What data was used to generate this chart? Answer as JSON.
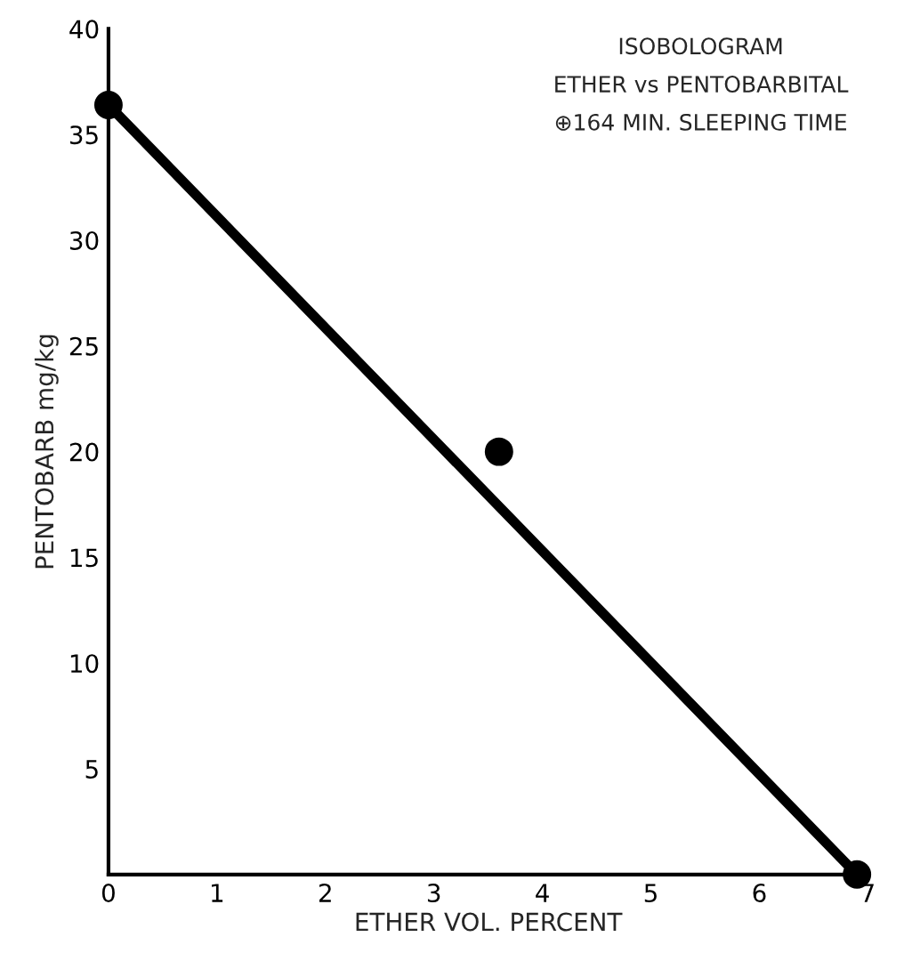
{
  "chart_data": {
    "type": "line",
    "xlabel": "ETHER VOL. PERCENT",
    "ylabel": "PENTOBARB mg/kg",
    "annotations": [
      "ISOBOLOGRAM",
      "ETHER vs PENTOBARBITAL",
      "⊕164 MIN. SLEEPING TIME"
    ],
    "series": [
      {
        "color": "#000000",
        "x": [
          0,
          6.9
        ],
        "values": [
          36.4,
          0
        ],
        "marker": "none"
      },
      {
        "type": "scatter",
        "color": "#000000",
        "x": [
          0,
          3.6,
          6.9
        ],
        "values": [
          36.4,
          20,
          0
        ],
        "marker": "circle"
      }
    ],
    "xlim": [
      0,
      7
    ],
    "xticks": [
      0,
      1,
      2,
      3,
      4,
      5,
      6,
      7
    ],
    "ylim": [
      0,
      40
    ],
    "yticks": [
      {
        "value": 0,
        "label": null
      },
      5,
      10,
      15,
      20,
      25,
      30,
      35,
      40
    ],
    "grid": false
  }
}
